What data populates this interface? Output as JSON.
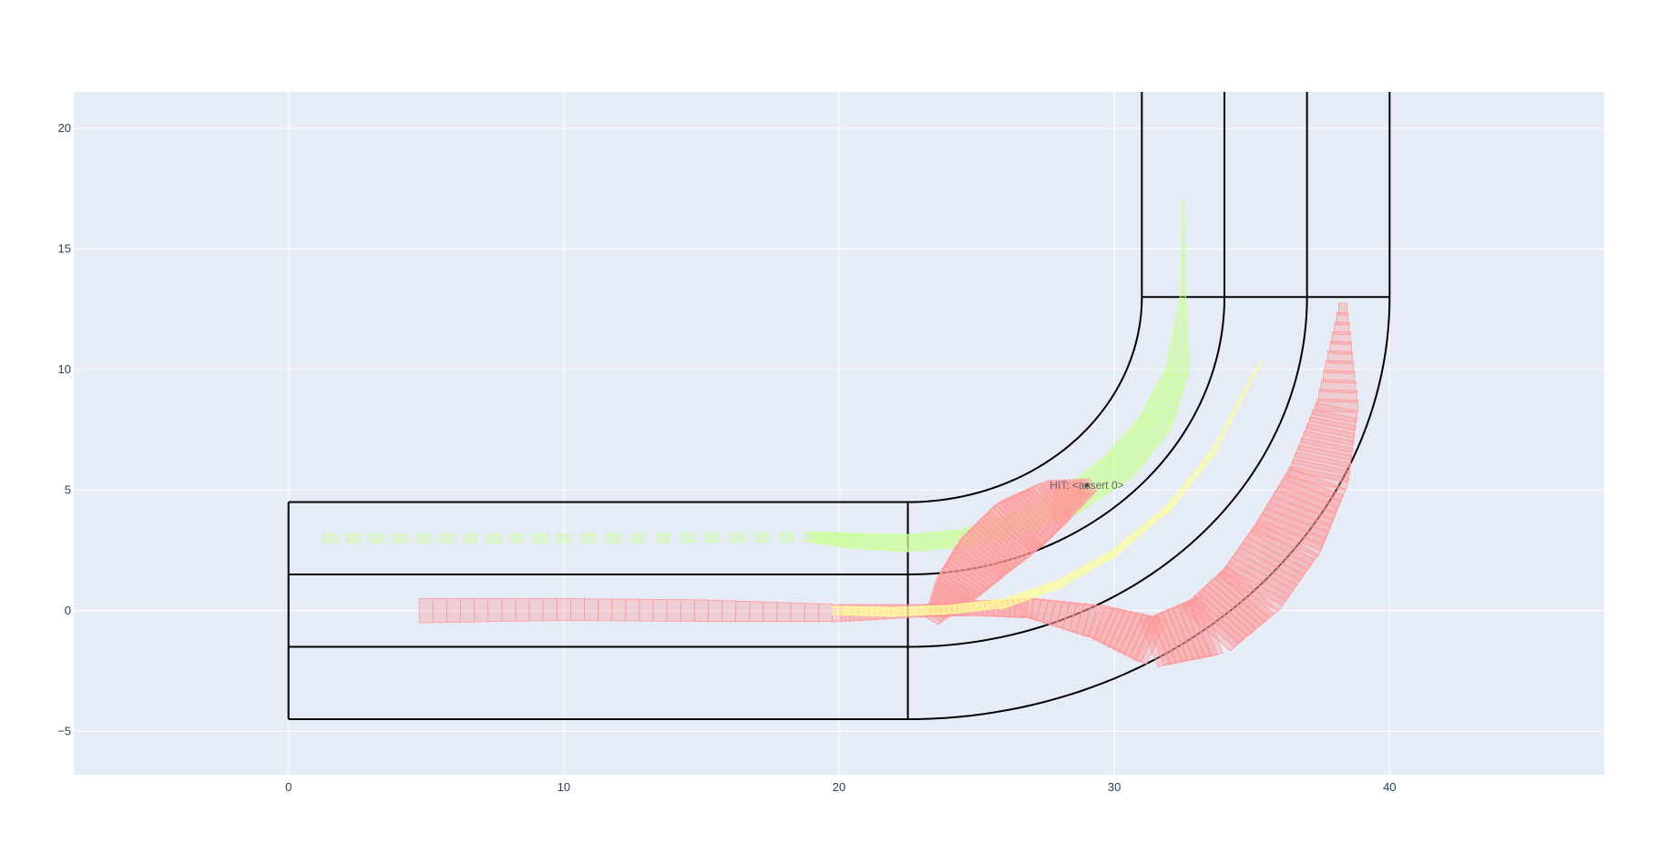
{
  "chart_data": {
    "type": "scatter",
    "xlim": [
      -7.8,
      47.8
    ],
    "ylim": [
      -6.8,
      21.5
    ],
    "grid": true,
    "colors": {
      "background": "#E5ECF6",
      "grid": "#ffffff",
      "outline": "#000000",
      "green": "#CCFF99",
      "pink": "#FF9999",
      "yellow": "#FFFF99"
    },
    "x_ticks": [
      {
        "v": 0,
        "label": "0"
      },
      {
        "v": 10,
        "label": "10"
      },
      {
        "v": 20,
        "label": "20"
      },
      {
        "v": 30,
        "label": "30"
      },
      {
        "v": 40,
        "label": "40"
      }
    ],
    "y_ticks": [
      {
        "v": -5,
        "label": "−5"
      },
      {
        "v": 0,
        "label": "0"
      },
      {
        "v": 5,
        "label": "5"
      },
      {
        "v": 10,
        "label": "10"
      },
      {
        "v": 15,
        "label": "15"
      },
      {
        "v": 20,
        "label": "20"
      }
    ],
    "road": {
      "straight_x": [
        0,
        22.5
      ],
      "lane_lines_y": [
        4.5,
        1.5,
        -1.5,
        -4.5
      ],
      "corner_center": [
        22.5,
        13
      ],
      "radii": [
        8.5,
        11.5,
        14.5,
        17.5
      ],
      "exit_top_y": 21.5,
      "exit_section_y": 13
    },
    "series": [
      {
        "color": "green",
        "path": [
          [
            1.5,
            3
          ],
          [
            10,
            3
          ],
          [
            19,
            3.05
          ],
          [
            20.5,
            2.9
          ],
          [
            22.5,
            2.8
          ],
          [
            24.5,
            3.0
          ],
          [
            26.5,
            3.6
          ],
          [
            28.5,
            4.6
          ],
          [
            30.2,
            6.0
          ],
          [
            31.5,
            7.8
          ],
          [
            32.3,
            10.0
          ],
          [
            32.5,
            13.0
          ],
          [
            32.5,
            16.8
          ]
        ],
        "width": [
          0.35,
          0.35,
          0.4,
          0.6,
          0.7,
          0.7,
          0.9,
          1.1,
          1.3,
          1.2,
          0.8,
          0.2,
          0.05
        ]
      },
      {
        "color": "pink",
        "path": [
          [
            5,
            0
          ],
          [
            10,
            0.05
          ],
          [
            15,
            0
          ],
          [
            20,
            -0.1
          ],
          [
            23,
            0
          ],
          [
            25,
            0.1
          ],
          [
            27,
            0.1
          ],
          [
            29.5,
            -0.5
          ],
          [
            31.5,
            -1.3
          ],
          [
            33.5,
            -0.6
          ],
          [
            35,
            0.9
          ],
          [
            36.3,
            3.0
          ],
          [
            37.4,
            5.5
          ],
          [
            38.1,
            8.5
          ],
          [
            38.3,
            12.5
          ]
        ],
        "width": [
          1.0,
          0.9,
          0.9,
          0.7,
          0.5,
          0.6,
          0.8,
          1.4,
          2.0,
          2.5,
          2.6,
          2.6,
          2.2,
          1.5,
          0.3
        ]
      },
      {
        "color": "pink",
        "path": [
          [
            23.5,
            -0.2
          ],
          [
            24.3,
            1.0
          ],
          [
            25.3,
            2.3
          ],
          [
            26.5,
            3.5
          ],
          [
            27.8,
            4.5
          ],
          [
            29,
            5.1
          ]
        ],
        "width": [
          0.6,
          1.6,
          2.2,
          2.4,
          1.8,
          0.6
        ]
      },
      {
        "color": "yellow",
        "path": [
          [
            20,
            0
          ],
          [
            22,
            -0.05
          ],
          [
            24,
            0.05
          ],
          [
            26,
            0.3
          ],
          [
            28,
            1.1
          ],
          [
            30,
            2.4
          ],
          [
            32,
            4.3
          ],
          [
            33.6,
            6.6
          ],
          [
            35.2,
            10.1
          ]
        ],
        "width": [
          0.35,
          0.35,
          0.35,
          0.35,
          0.3,
          0.25,
          0.2,
          0.15,
          0.05
        ]
      }
    ],
    "annotation": {
      "text": "HIT: <assert 0>",
      "x": 29,
      "y": 5.2
    }
  }
}
